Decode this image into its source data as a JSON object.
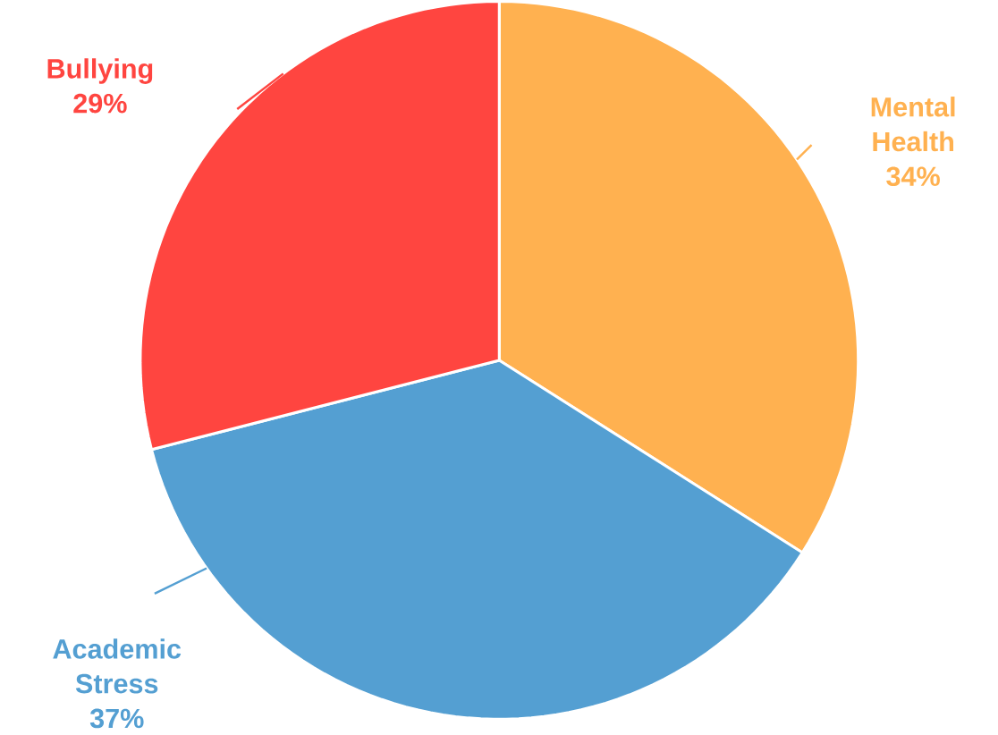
{
  "chart_data": {
    "type": "pie",
    "categories": [
      "Mental Health",
      "Academic Stress",
      "Bullying"
    ],
    "values": [
      34,
      37,
      29
    ],
    "colors": [
      "#ffb150",
      "#549fd2",
      "#ff4540"
    ],
    "value_labels": [
      "34%",
      "37%",
      "29%"
    ]
  }
}
